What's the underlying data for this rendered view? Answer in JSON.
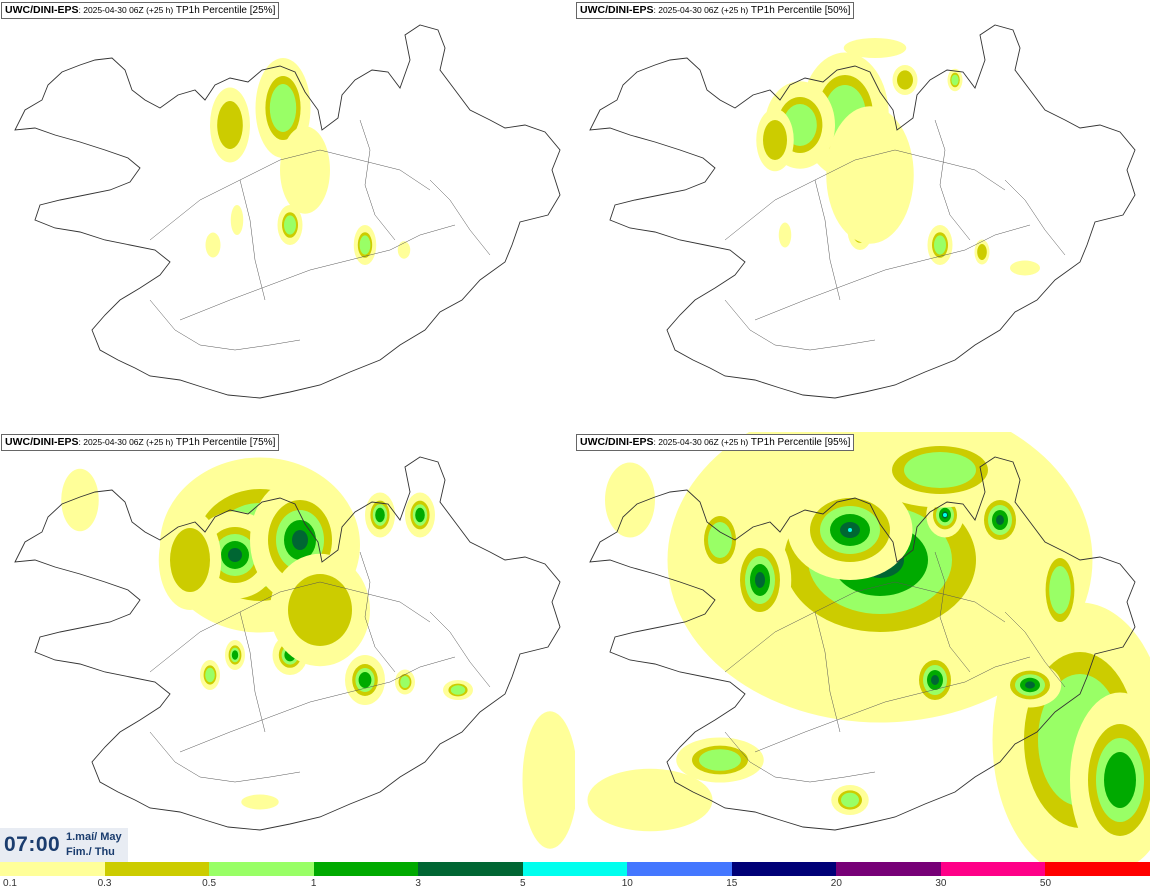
{
  "panels": [
    {
      "model": "UWC/DINI-EPS",
      "run": ": 2025-04-30 06Z (+25 h)",
      "param": " TP1h Percentile [25%]"
    },
    {
      "model": "UWC/DINI-EPS",
      "run": ": 2025-04-30 06Z (+25 h)",
      "param": " TP1h Percentile [50%]"
    },
    {
      "model": "UWC/DINI-EPS",
      "run": ": 2025-04-30 06Z (+25 h)",
      "param": " TP1h Percentile [75%]"
    },
    {
      "model": "UWC/DINI-EPS",
      "run": ": 2025-04-30 06Z (+25 h)",
      "param": " TP1h Percentile [95%]"
    }
  ],
  "valid_time": {
    "time": "07:00",
    "date_line1": "1.maí/ May",
    "date_line2": "Fim./ Thu"
  },
  "legend": {
    "labels": [
      "0.1",
      "0.3",
      "0.5",
      "1",
      "3",
      "5",
      "10",
      "15",
      "20",
      "30",
      "50"
    ],
    "colors": [
      "#ffff99",
      "#cccc00",
      "#99ff66",
      "#00aa00",
      "#006633",
      "#00ffee",
      "#4477ff",
      "#000077",
      "#770077",
      "#ff0088",
      "#ff0000"
    ]
  }
}
